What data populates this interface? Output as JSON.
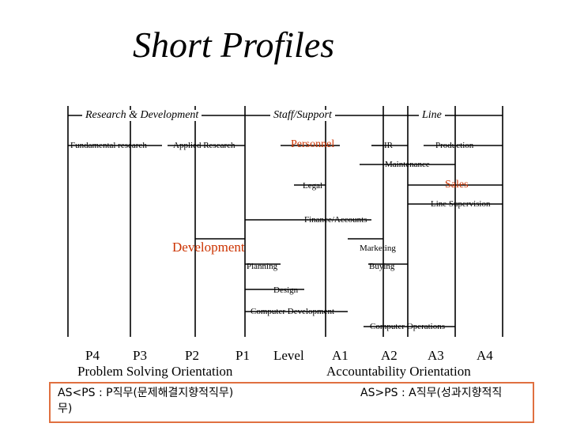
{
  "title": "Short Profiles",
  "headers": {
    "rd": "Research & Development",
    "staff": "Staff/Support",
    "line": "Line"
  },
  "labels": {
    "fundamental": "Fundamental research",
    "applied": "Applied Research",
    "personnel": "Personnel",
    "ir": "IR",
    "production": "Production",
    "maintenance": "Maintenance",
    "legal": "Legal",
    "sales": "Sales",
    "line_supervision": "Line Supervision",
    "finance": "Finance/Accounts",
    "development": "Development",
    "marketing": "Marketing",
    "planning": "Planning",
    "buying": "Buying",
    "design": "Design",
    "computer_dev": "Computer Development",
    "computer_ops": "Computer Operations"
  },
  "scale": {
    "p4": "P4",
    "p3": "P3",
    "p2": "P2",
    "p1": "P1",
    "level": "Level",
    "a1": "A1",
    "a2": "A2",
    "a3": "A3",
    "a4": "A4",
    "problem": "Problem Solving Orientation",
    "accountability": "Accountability Orientation"
  },
  "notes": {
    "left_line1": "AS<PS : P직무(문제해결지향적직무)",
    "left_line2": "무)",
    "right": "AS>PS : A직무(성과지향적직"
  },
  "colors": {
    "accent": "#cc3300",
    "box_border": "#e07040"
  }
}
